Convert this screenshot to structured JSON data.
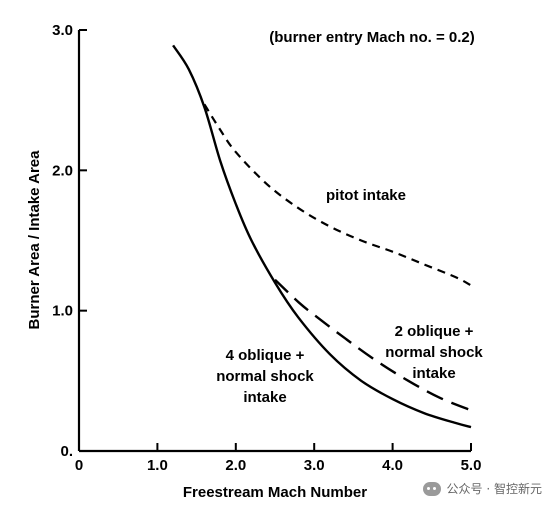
{
  "chart_data": {
    "type": "line",
    "title": "",
    "annotation_top": "(burner entry Mach no. = 0.2)",
    "xlabel": "Freestream Mach Number",
    "ylabel": "Burner Area / Intake Area",
    "xlim": [
      0,
      5.0
    ],
    "ylim": [
      0,
      3.0
    ],
    "x_ticks": [
      "0",
      "1.0",
      "2.0",
      "3.0",
      "4.0",
      "5.0"
    ],
    "y_ticks": [
      "0.",
      "1.0",
      "2.0",
      "3.0"
    ],
    "grid": false,
    "series": [
      {
        "name": "pitot intake",
        "style": "short-dash",
        "x": [
          1.6,
          1.8,
          2.0,
          2.4,
          2.8,
          3.2,
          3.6,
          4.0,
          4.4,
          4.8,
          5.0
        ],
        "y": [
          2.47,
          2.29,
          2.13,
          1.9,
          1.73,
          1.6,
          1.5,
          1.42,
          1.33,
          1.24,
          1.18
        ]
      },
      {
        "name": "2 oblique + normal shock intake",
        "style": "long-dash",
        "x": [
          2.5,
          2.8,
          3.0,
          3.4,
          3.8,
          4.2,
          4.6,
          5.0
        ],
        "y": [
          1.22,
          1.06,
          0.97,
          0.8,
          0.64,
          0.5,
          0.38,
          0.29
        ]
      },
      {
        "name": "4 oblique + normal shock intake",
        "style": "solid",
        "x": [
          1.2,
          1.4,
          1.6,
          1.8,
          2.0,
          2.2,
          2.5,
          2.8,
          3.2,
          3.6,
          4.0,
          4.4,
          4.8,
          5.0
        ],
        "y": [
          2.89,
          2.72,
          2.45,
          2.07,
          1.76,
          1.5,
          1.2,
          0.95,
          0.69,
          0.5,
          0.37,
          0.27,
          0.2,
          0.17
        ]
      }
    ],
    "labels": {
      "pitot": [
        "pitot intake"
      ],
      "two_oblique": [
        "2 oblique +",
        "normal shock",
        "intake"
      ],
      "four_oblique": [
        "4 oblique +",
        "normal shock",
        "intake"
      ]
    }
  },
  "watermark": {
    "text": "公众号 · 智控新元",
    "icon": "wechat-icon"
  }
}
